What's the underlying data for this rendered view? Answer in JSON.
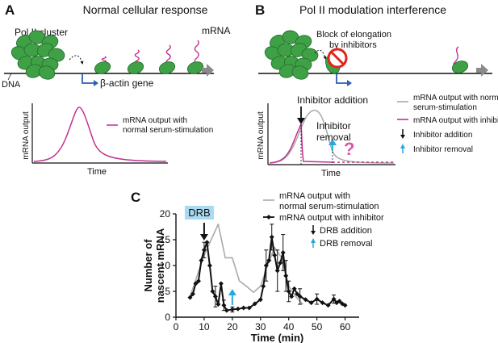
{
  "panel_a": {
    "letter": "A",
    "title": "Normal cellular response",
    "cluster_label": "Pol II cluster",
    "mrna_label": "mRNA",
    "dna_label": "DNA",
    "gene_label": "β-actin gene",
    "ylabel": "mRNA output",
    "xlabel": "Time",
    "legend": "mRNA output with normal serum-stimulation"
  },
  "panel_b": {
    "letter": "B",
    "title": "Pol II modulation interference",
    "block_label": "Block of elongation by inhibitors",
    "ylabel": "mRNA output",
    "xlabel": "Time",
    "inhibitor_addition_label": "Inhibitor addition",
    "inhibitor_removal_label": "Inhibitor removal",
    "question_mark": "?",
    "legend": [
      {
        "label": "mRNA output with normal serum-stimulation",
        "color": "#aaaaaa",
        "kind": "line"
      },
      {
        "label": "mRNA output with inhibitor",
        "color": "#c2308f",
        "kind": "line"
      },
      {
        "label": "Inhibitor addition",
        "color": "#111111",
        "kind": "arrow-down"
      },
      {
        "label": "Inhibitor removal",
        "color": "#29a8e0",
        "kind": "arrow-up"
      }
    ]
  },
  "panel_c": {
    "letter": "C",
    "drb_label": "DRB",
    "legend": [
      {
        "label": "mRNA output with normal serum-stimulation",
        "color": "#aaaaaa",
        "kind": "line"
      },
      {
        "label": "mRNA output with inhibitor",
        "color": "#111111",
        "kind": "line-marker"
      },
      {
        "label": "DRB addition",
        "color": "#111111",
        "kind": "arrow-down"
      },
      {
        "label": "DRB removal",
        "color": "#29a8e0",
        "kind": "arrow-up"
      }
    ]
  },
  "colors": {
    "polymerase": "#3fa046",
    "magenta": "#c2308f",
    "blue_arrow": "#29a8e0",
    "blue_gene": "#2b5fb3",
    "grey_arrow": "#8a8a8a",
    "grey_line": "#aaaaaa",
    "drb_box": "#a9daf2",
    "stop_red": "#e0251b"
  },
  "chart_data": {
    "type": "line",
    "xlabel": "Time (min)",
    "ylabel": "Number of nascent mRNA",
    "xlim": [
      0,
      65
    ],
    "ylim": [
      0,
      20
    ],
    "xticks": [
      0,
      10,
      20,
      30,
      40,
      50,
      60
    ],
    "yticks": [
      0,
      5,
      10,
      15,
      20
    ],
    "series": [
      {
        "name": "mRNA output with normal serum-stimulation",
        "color": "#aaaaaa",
        "x": [
          5,
          10,
          15,
          17.5,
          20,
          22.5,
          25,
          27.5,
          30,
          32.5,
          35,
          37.5,
          40,
          42.5,
          45
        ],
        "y": [
          4,
          12,
          18,
          11.5,
          11.5,
          7,
          6,
          4.8,
          6,
          10,
          13.5,
          11.5,
          6,
          4,
          2.5
        ]
      },
      {
        "name": "mRNA output with inhibitor",
        "color": "#111111",
        "x": [
          5,
          6,
          7,
          8,
          9,
          10,
          11,
          12,
          13,
          14,
          15,
          16,
          17,
          18,
          20,
          22,
          24,
          26,
          28,
          30,
          31,
          32,
          33,
          34,
          35,
          36,
          37,
          38,
          39,
          40,
          41,
          42,
          43,
          44,
          46,
          48,
          50,
          52,
          54,
          56,
          57,
          58,
          59,
          60
        ],
        "y": [
          3.8,
          4.5,
          6.5,
          7,
          11,
          13,
          14.5,
          10,
          5,
          4,
          2.5,
          6.5,
          2.3,
          1.3,
          1.5,
          1.6,
          1.8,
          1.8,
          2.6,
          3.4,
          6,
          10,
          11,
          15.5,
          12,
          9,
          10.5,
          12.5,
          8,
          5,
          4,
          5.5,
          4.5,
          4,
          3.4,
          2.8,
          3.5,
          2.8,
          2.3,
          3.5,
          2.8,
          3.1,
          2.6,
          2.3
        ]
      }
    ],
    "error_bars": [
      {
        "x": 10,
        "y": 13,
        "err": 1.5
      },
      {
        "x": 14,
        "y": 4,
        "err": 2
      },
      {
        "x": 17,
        "y": 2.3,
        "err": 1
      },
      {
        "x": 20,
        "y": 1.5,
        "err": 0.5
      },
      {
        "x": 32,
        "y": 10,
        "err": 3
      },
      {
        "x": 34,
        "y": 15.5,
        "err": 2.5
      },
      {
        "x": 36,
        "y": 9,
        "err": 4
      },
      {
        "x": 38,
        "y": 12.5,
        "err": 3.5
      },
      {
        "x": 39,
        "y": 8,
        "err": 3
      },
      {
        "x": 40,
        "y": 5,
        "err": 2
      },
      {
        "x": 44,
        "y": 4,
        "err": 1.5
      },
      {
        "x": 50,
        "y": 3.5,
        "err": 1
      },
      {
        "x": 56,
        "y": 3.5,
        "err": 0.8
      }
    ],
    "drb_addition_x": 10,
    "drb_removal_x": 20,
    "grid": false,
    "legend_position": "top-right"
  }
}
